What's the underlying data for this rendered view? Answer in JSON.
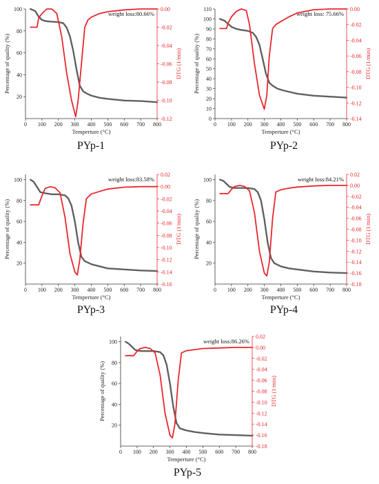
{
  "colors": {
    "tg": "#606060",
    "dtg": "#e8262c",
    "axis": "#333333"
  },
  "chart_data": [
    {
      "type": "line",
      "caption": "PYp-1",
      "annotation": "weight loss:80.66%",
      "xlabel": "Temperture (°C)",
      "ylabel_left": "Percentage of quality (%)",
      "ylabel_right": "DTG (1/min)",
      "xlim": [
        0,
        800
      ],
      "ylim_left": [
        0,
        100
      ],
      "ylim_right": [
        -0.12,
        0.0
      ],
      "xticks": [
        "0",
        "100",
        "200",
        "300",
        "400",
        "500",
        "600",
        "700",
        "800"
      ],
      "yticks_left": [
        "20",
        "40",
        "60",
        "80",
        "100"
      ],
      "yticks_right": [
        "0.00",
        "-0.02",
        "-0.04",
        "-0.06",
        "-0.08",
        "-0.10",
        "-0.12"
      ],
      "series": [
        {
          "axis": "left",
          "x": [
            30,
            60,
            80,
            100,
            120,
            150,
            200,
            230,
            250,
            270,
            290,
            310,
            330,
            350,
            370,
            400,
            450,
            500,
            600,
            700,
            800
          ],
          "y": [
            100,
            98,
            93,
            90,
            89,
            88.5,
            88,
            87,
            83,
            75,
            62,
            45,
            30,
            25,
            23,
            21,
            19,
            18,
            16.5,
            16,
            15
          ]
        },
        {
          "axis": "right",
          "x": [
            30,
            70,
            80,
            100,
            130,
            160,
            190,
            220,
            250,
            280,
            305,
            320,
            340,
            360,
            380,
            400,
            450,
            500,
            600,
            700,
            800
          ],
          "y": [
            -0.02,
            -0.02,
            -0.01,
            -0.005,
            0.0,
            0.0,
            -0.005,
            -0.03,
            -0.07,
            -0.1,
            -0.118,
            -0.1,
            -0.06,
            -0.02,
            -0.012,
            -0.009,
            -0.005,
            -0.003,
            -0.001,
            0.0,
            0.0
          ]
        }
      ]
    },
    {
      "type": "line",
      "caption": "PYp-2",
      "annotation": "weight loss: 75.66%",
      "xlabel": "Temperture (°C)",
      "ylabel_left": "Percentage of quality (%)",
      "ylabel_right": "DTG (1/min)",
      "xlim": [
        0,
        800
      ],
      "ylim_left": [
        0,
        110
      ],
      "ylim_right": [
        -0.14,
        0.0
      ],
      "xticks": [
        "0",
        "100",
        "200",
        "300",
        "400",
        "500",
        "600",
        "700",
        "800"
      ],
      "yticks_left": [
        "0",
        "10",
        "20",
        "30",
        "40",
        "50",
        "60",
        "70",
        "80",
        "90",
        "100",
        "110"
      ],
      "yticks_right": [
        "0.00",
        "-0.02",
        "-0.04",
        "-0.06",
        "-0.08",
        "-0.10",
        "-0.12",
        "-0.14"
      ],
      "series": [
        {
          "axis": "left",
          "x": [
            30,
            60,
            80,
            100,
            130,
            160,
            200,
            230,
            250,
            270,
            290,
            310,
            330,
            350,
            380,
            420,
            500,
            600,
            700,
            800
          ],
          "y": [
            100,
            98,
            95,
            92,
            90,
            89,
            88,
            86,
            82,
            74,
            60,
            45,
            36,
            33,
            30,
            28,
            25,
            23,
            22,
            21
          ]
        },
        {
          "axis": "right",
          "x": [
            30,
            70,
            80,
            100,
            130,
            160,
            190,
            210,
            240,
            270,
            300,
            315,
            330,
            350,
            370,
            400,
            450,
            500,
            600,
            700,
            800
          ],
          "y": [
            -0.025,
            -0.025,
            -0.018,
            -0.01,
            -0.003,
            0.0,
            -0.002,
            -0.02,
            -0.07,
            -0.11,
            -0.128,
            -0.11,
            -0.06,
            -0.025,
            -0.02,
            -0.016,
            -0.01,
            -0.005,
            -0.001,
            0.0,
            0.0
          ]
        }
      ]
    },
    {
      "type": "line",
      "caption": "PYp-3",
      "annotation": "weight loss:83.58%",
      "xlabel": "Temperture (°C)",
      "ylabel_left": "Percentage of quality (%)",
      "ylabel_right": "DTG (1/min)",
      "xlim": [
        0,
        800
      ],
      "ylim_left": [
        0,
        105
      ],
      "ylim_right": [
        -0.16,
        0.02
      ],
      "xticks": [
        "0",
        "100",
        "200",
        "300",
        "400",
        "500",
        "600",
        "700",
        "800"
      ],
      "yticks_left": [
        "20",
        "40",
        "60",
        "80",
        "100"
      ],
      "yticks_right": [
        "0.02",
        "0.00",
        "-0.02",
        "-0.04",
        "-0.06",
        "-0.08",
        "-0.10",
        "-0.12",
        "-0.14",
        "-0.16"
      ],
      "series": [
        {
          "axis": "left",
          "x": [
            30,
            50,
            70,
            90,
            120,
            160,
            200,
            240,
            260,
            280,
            300,
            320,
            340,
            360,
            400,
            450,
            500,
            600,
            700,
            800
          ],
          "y": [
            100,
            98,
            93,
            88,
            87,
            86,
            86,
            85,
            82,
            75,
            60,
            40,
            26,
            22,
            19,
            17,
            15,
            14,
            13,
            12.5
          ]
        },
        {
          "axis": "right",
          "x": [
            30,
            80,
            100,
            120,
            150,
            180,
            210,
            240,
            270,
            300,
            315,
            330,
            350,
            370,
            400,
            450,
            500,
            600,
            700,
            800
          ],
          "y": [
            -0.03,
            -0.03,
            -0.015,
            -0.003,
            0.0,
            -0.002,
            -0.01,
            -0.05,
            -0.11,
            -0.14,
            -0.145,
            -0.12,
            -0.06,
            -0.02,
            -0.012,
            -0.008,
            -0.004,
            -0.001,
            0.0,
            0.0
          ]
        }
      ]
    },
    {
      "type": "line",
      "caption": "PYp-4",
      "annotation": "weight loss:84.21%",
      "xlabel": "Temperture (°C)",
      "ylabel_left": "Percentage of quality (%)",
      "ylabel_right": "DTG (1/min)",
      "xlim": [
        0,
        800
      ],
      "ylim_left": [
        0,
        105
      ],
      "ylim_right": [
        -0.18,
        0.02
      ],
      "xticks": [
        "0",
        "100",
        "200",
        "300",
        "400",
        "500",
        "600",
        "700",
        "800"
      ],
      "yticks_left": [
        "20",
        "40",
        "60",
        "80",
        "100"
      ],
      "yticks_right": [
        "0.02",
        "0.00",
        "-0.02",
        "-0.04",
        "-0.06",
        "-0.08",
        "-0.10",
        "-0.12",
        "-0.14",
        "-0.16",
        "-0.18"
      ],
      "series": [
        {
          "axis": "left",
          "x": [
            30,
            50,
            70,
            90,
            120,
            160,
            200,
            240,
            260,
            280,
            300,
            320,
            340,
            360,
            400,
            450,
            500,
            600,
            700,
            800
          ],
          "y": [
            100,
            99,
            96,
            93,
            92,
            92,
            92,
            91,
            88,
            80,
            62,
            40,
            25,
            20,
            17,
            15,
            14,
            12,
            11,
            10.5
          ]
        },
        {
          "axis": "right",
          "x": [
            30,
            80,
            100,
            120,
            150,
            180,
            210,
            240,
            270,
            300,
            315,
            330,
            350,
            370,
            400,
            450,
            500,
            600,
            700,
            800
          ],
          "y": [
            -0.015,
            -0.015,
            -0.007,
            -0.002,
            0.0,
            -0.002,
            -0.01,
            -0.05,
            -0.12,
            -0.16,
            -0.165,
            -0.14,
            -0.06,
            -0.012,
            -0.008,
            -0.005,
            -0.003,
            -0.001,
            0.0,
            0.0
          ]
        }
      ]
    },
    {
      "type": "line",
      "caption": "PYp-5",
      "annotation": "weight loss:86.26%",
      "xlabel": "Temperture (°C)",
      "ylabel_left": "Percentage of quality (%)",
      "ylabel_right": "DTG (1/min)",
      "xlim": [
        0,
        800
      ],
      "ylim_left": [
        0,
        105
      ],
      "ylim_right": [
        -0.18,
        0.02
      ],
      "xticks": [
        "0",
        "100",
        "200",
        "300",
        "400",
        "500",
        "600",
        "700",
        "800"
      ],
      "yticks_left": [
        "20",
        "40",
        "60",
        "80",
        "100"
      ],
      "yticks_right": [
        "0.02",
        "0.00",
        "-0.02",
        "-0.04",
        "-0.06",
        "-0.08",
        "-0.10",
        "-0.12",
        "-0.14",
        "-0.16",
        "-0.18"
      ],
      "series": [
        {
          "axis": "left",
          "x": [
            30,
            50,
            70,
            90,
            120,
            160,
            200,
            240,
            260,
            280,
            300,
            320,
            340,
            360,
            400,
            450,
            500,
            600,
            700,
            800
          ],
          "y": [
            100,
            98,
            95,
            92,
            91,
            91,
            91,
            90,
            87,
            78,
            60,
            38,
            22,
            17,
            15,
            13.5,
            12.5,
            11,
            10.5,
            10
          ]
        },
        {
          "axis": "right",
          "x": [
            30,
            80,
            100,
            120,
            150,
            180,
            210,
            240,
            270,
            300,
            315,
            330,
            350,
            370,
            400,
            450,
            500,
            600,
            700,
            800
          ],
          "y": [
            -0.015,
            -0.015,
            -0.007,
            -0.002,
            0.0,
            -0.002,
            -0.01,
            -0.05,
            -0.12,
            -0.16,
            -0.165,
            -0.14,
            -0.06,
            -0.01,
            -0.006,
            -0.004,
            -0.002,
            -0.001,
            0.0,
            0.0
          ]
        }
      ]
    }
  ]
}
